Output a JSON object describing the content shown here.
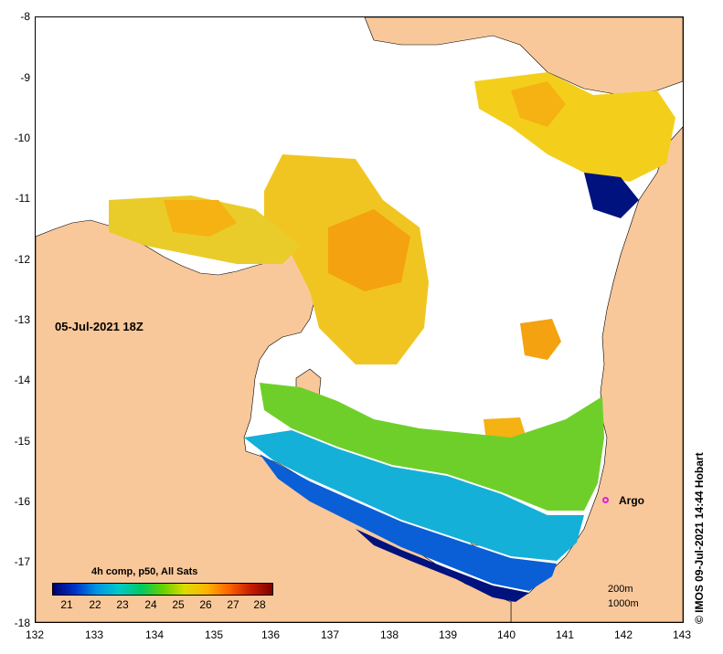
{
  "map": {
    "date_label": "05-Jul-2021 18Z",
    "legend_title": "4h comp, p50, All Sats",
    "colorbar_ticks": [
      "21",
      "22",
      "23",
      "24",
      "25",
      "26",
      "27",
      "28"
    ],
    "x_ticks": [
      "132",
      "133",
      "134",
      "135",
      "136",
      "137",
      "138",
      "139",
      "140",
      "141",
      "142",
      "143"
    ],
    "y_ticks": [
      "-8",
      "-9",
      "-10",
      "-11",
      "-12",
      "-13",
      "-14",
      "-15",
      "-16",
      "-17",
      "-18"
    ],
    "argo_label": "Argo",
    "scale_200": "200m",
    "scale_1000": "1000m",
    "credit": "© IMOS 09-Jul-2021 14:44 Hobart",
    "colors": {
      "land": "#f9c89a",
      "no_data": "#ffffff",
      "argo_marker": "#e020e0"
    }
  }
}
